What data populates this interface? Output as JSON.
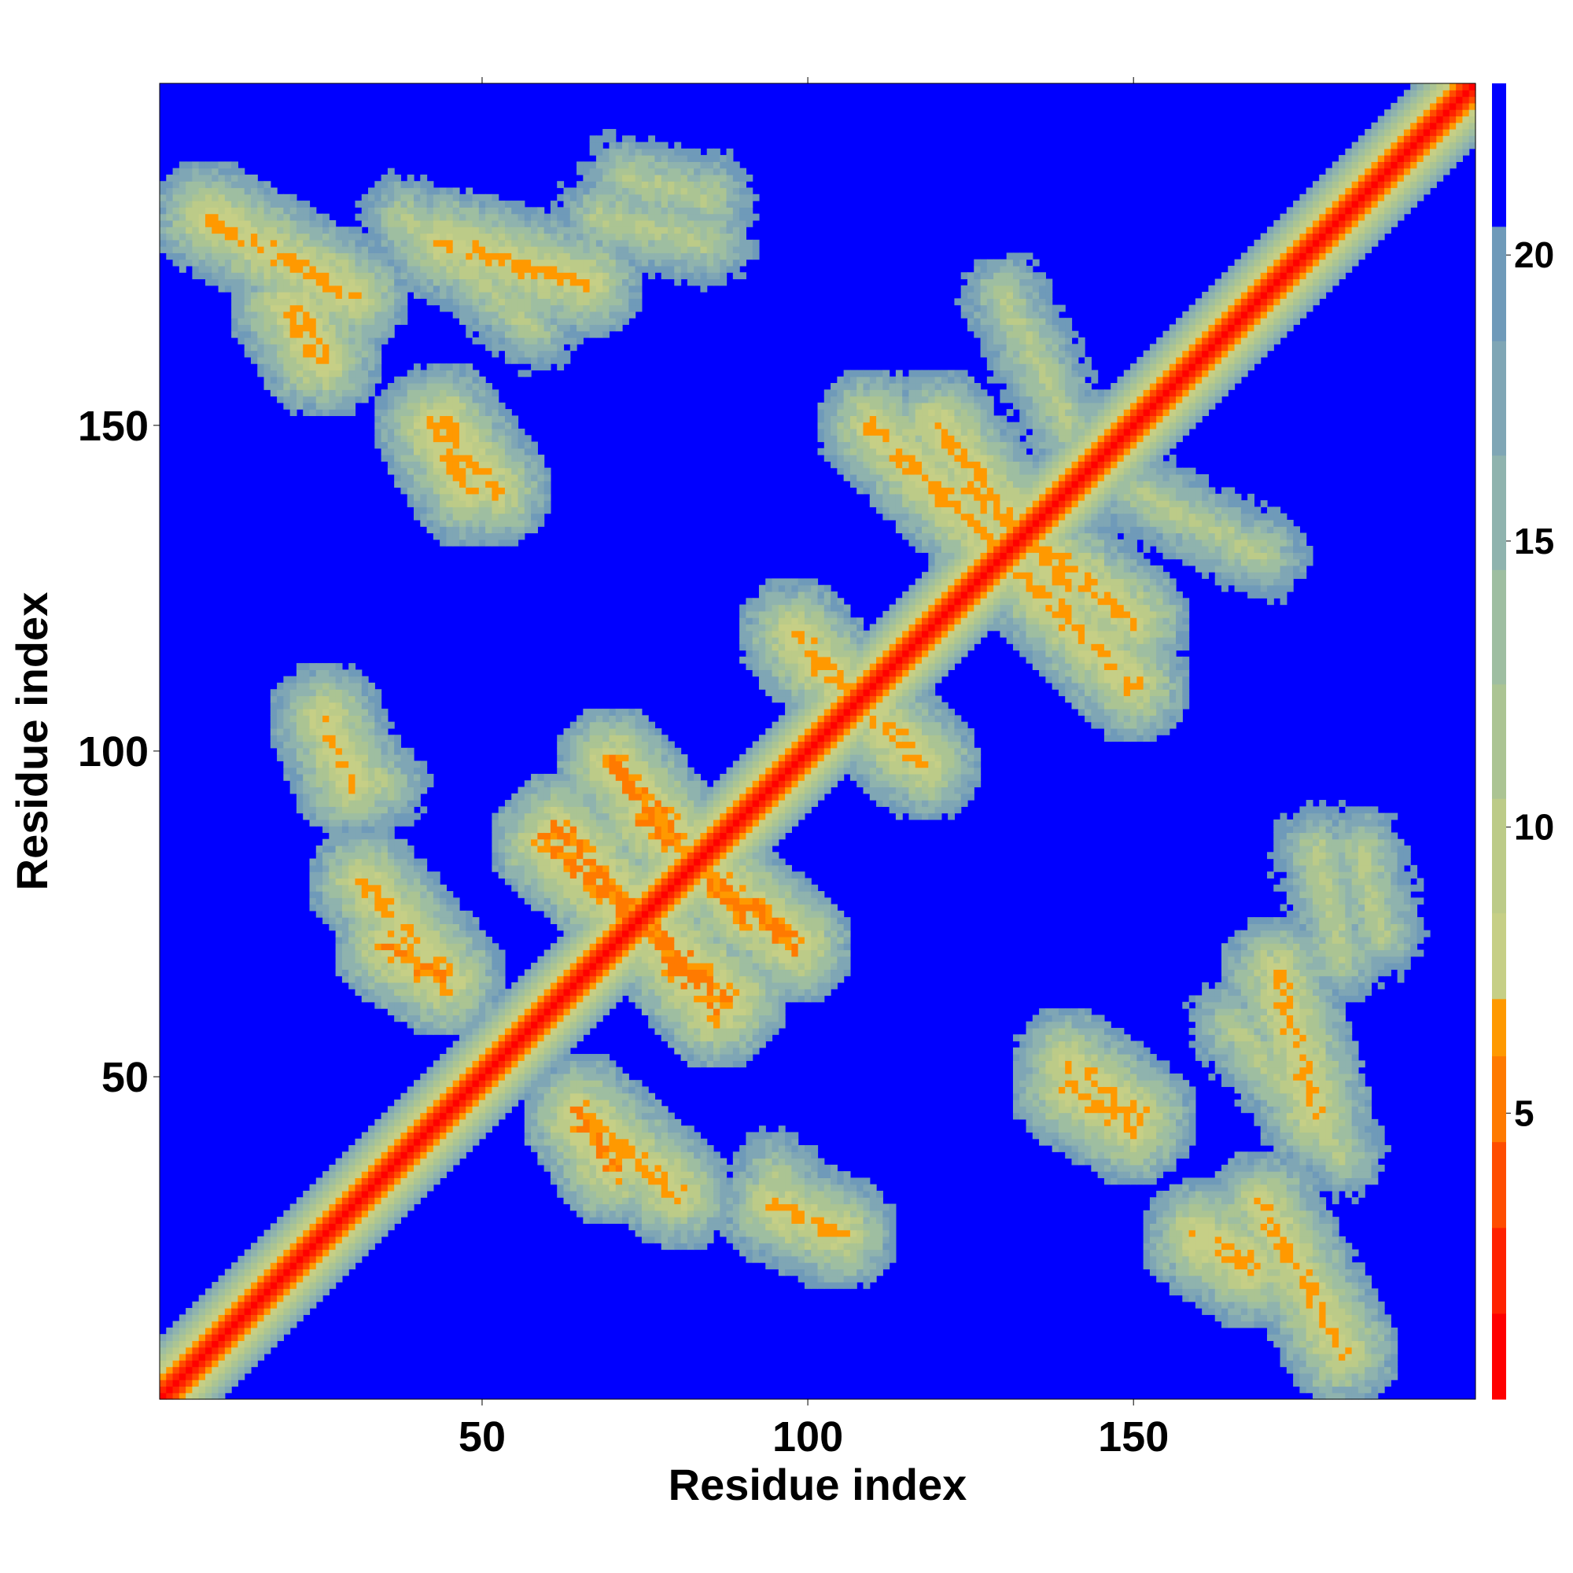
{
  "chart_data": {
    "type": "heatmap",
    "title": "",
    "xlabel": "Residue index",
    "ylabel": "Residue index",
    "xlim": [
      1,
      202
    ],
    "ylim": [
      1,
      202
    ],
    "x_ticks": [
      50,
      100,
      150
    ],
    "y_ticks": [
      50,
      100,
      150
    ],
    "colorbar": {
      "ticks": [
        5,
        10,
        15,
        20
      ],
      "range": [
        0,
        23
      ],
      "bands": [
        {
          "from": 0,
          "to": 1.5,
          "color": "#ff0000"
        },
        {
          "from": 1.5,
          "to": 3,
          "color": "#ff2200"
        },
        {
          "from": 3,
          "to": 4.5,
          "color": "#ff4d00"
        },
        {
          "from": 4.5,
          "to": 6,
          "color": "#ff7a00"
        },
        {
          "from": 6,
          "to": 7,
          "color": "#ff9900"
        },
        {
          "from": 7,
          "to": 8.5,
          "color": "#c6cf86"
        },
        {
          "from": 8.5,
          "to": 10.5,
          "color": "#bccb88"
        },
        {
          "from": 10.5,
          "to": 12.5,
          "color": "#abc493"
        },
        {
          "from": 12.5,
          "to": 14.5,
          "color": "#9ebea1"
        },
        {
          "from": 14.5,
          "to": 16.5,
          "color": "#8fb3ae"
        },
        {
          "from": 16.5,
          "to": 18.5,
          "color": "#7fa6b5"
        },
        {
          "from": 18.5,
          "to": 20.5,
          "color": "#6f9ab9"
        },
        {
          "from": 20.5,
          "to": 23,
          "color": "#0000ff"
        }
      ]
    },
    "background_value": 23,
    "diagonal_value": 0.5,
    "contact_bands": [
      {
        "from": [
          8,
          182
        ],
        "to": [
          30,
          170
        ],
        "value": 6
      },
      {
        "from": [
          38,
          182
        ],
        "to": [
          58,
          165
        ],
        "value": 10
      },
      {
        "from": [
          68,
          182
        ],
        "to": [
          85,
          178
        ],
        "value": 10
      },
      {
        "from": [
          44,
          151
        ],
        "to": [
          52,
          140
        ],
        "value": 6
      },
      {
        "from": [
          25,
          102
        ],
        "to": [
          35,
          95
        ],
        "value": 10
      },
      {
        "from": [
          32,
          80
        ],
        "to": [
          45,
          65
        ],
        "value": 6
      },
      {
        "from": [
          70,
          98
        ],
        "to": [
          90,
          75
        ],
        "value": 5
      },
      {
        "from": [
          60,
          86
        ],
        "to": [
          88,
          62
        ],
        "value": 5
      },
      {
        "from": [
          98,
          118
        ],
        "to": [
          115,
          100
        ],
        "value": 6
      },
      {
        "from": [
          120,
          150
        ],
        "to": [
          140,
          125
        ],
        "value": 6
      },
      {
        "from": [
          130,
          130
        ],
        "to": [
          150,
          110
        ],
        "value": 6
      },
      {
        "from": [
          185,
          85
        ],
        "to": [
          188,
          72
        ],
        "value": 10
      },
      {
        "from": [
          140,
          48
        ],
        "to": [
          150,
          42
        ],
        "value": 6
      },
      {
        "from": [
          172,
          66
        ],
        "to": [
          178,
          44
        ],
        "value": 6
      },
      {
        "from": [
          65,
          44
        ],
        "to": [
          70,
          36
        ],
        "value": 5
      },
      {
        "from": [
          95,
          30
        ],
        "to": [
          105,
          26
        ],
        "value": 6
      },
      {
        "from": [
          160,
          26
        ],
        "to": [
          168,
          22
        ],
        "value": 6
      },
      {
        "from": [
          20,
          168
        ],
        "to": [
          25,
          160
        ],
        "value": 6
      },
      {
        "from": [
          110,
          150
        ],
        "to": [
          130,
          140
        ],
        "value": 10
      },
      {
        "from": [
          150,
          140
        ],
        "to": [
          170,
          130
        ],
        "value": 10
      }
    ]
  }
}
